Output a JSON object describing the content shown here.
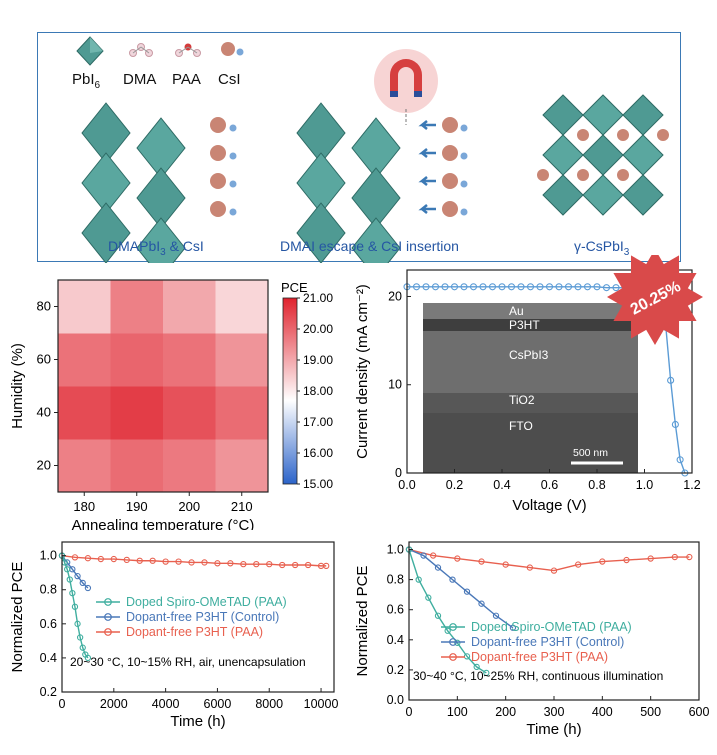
{
  "schematic": {
    "legend": [
      {
        "label": "PbI",
        "sub": "6"
      },
      {
        "label": "DMA",
        "sub": ""
      },
      {
        "label": "PAA",
        "sub": ""
      },
      {
        "label": "CsI",
        "sub": ""
      }
    ],
    "stages": [
      {
        "label": "DMAPbI",
        "sub": "3",
        "tail": " & CsI"
      },
      {
        "label": "DMAI escape & CsI insertion",
        "sub": "",
        "tail": ""
      },
      {
        "label": "γ-CsPbI",
        "sub": "3",
        "tail": ""
      }
    ],
    "colors": {
      "octahedron": "#4f9a93",
      "cs": "#c98574",
      "frame": "#3b79b5",
      "magnet": "#d63f3f"
    }
  },
  "chart_data": [
    {
      "type": "heatmap",
      "xlabel": "Annealing temperature (°C)",
      "ylabel": "Humidity (%)",
      "x_categories": [
        "180",
        "190",
        "200",
        "210"
      ],
      "y_categories": [
        "20",
        "40",
        "60",
        "80"
      ],
      "values": [
        [
          19.6,
          19.9,
          19.7,
          19.3
        ],
        [
          20.4,
          20.6,
          20.3,
          19.9
        ],
        [
          19.8,
          20.0,
          19.8,
          19.3
        ],
        [
          18.5,
          19.6,
          19.0,
          18.3
        ]
      ],
      "colorbar": {
        "title": "PCE",
        "min": 15.0,
        "max": 21.0,
        "ticks": [
          "21.00",
          "20.00",
          "19.00",
          "18.00",
          "17.00",
          "16.00",
          "15.00"
        ]
      }
    },
    {
      "type": "line",
      "xlabel": "Voltage (V)",
      "ylabel": "Current density (mA cm⁻²)",
      "xlim": [
        0.0,
        1.2
      ],
      "ylim": [
        0,
        23
      ],
      "x_ticks": [
        "0.0",
        "0.2",
        "0.4",
        "0.6",
        "0.8",
        "1.0",
        "1.2"
      ],
      "y_ticks": [
        "0",
        "10",
        "20"
      ],
      "series": [
        {
          "name": "",
          "color": "#5b9bd5",
          "x": [
            0.0,
            0.04,
            0.08,
            0.12,
            0.16,
            0.2,
            0.24,
            0.28,
            0.32,
            0.36,
            0.4,
            0.44,
            0.48,
            0.52,
            0.56,
            0.6,
            0.64,
            0.68,
            0.72,
            0.76,
            0.8,
            0.84,
            0.88,
            0.92,
            0.96,
            1.0,
            1.04,
            1.07,
            1.09,
            1.11,
            1.13,
            1.15,
            1.17
          ],
          "y": [
            21.1,
            21.1,
            21.1,
            21.1,
            21.1,
            21.1,
            21.1,
            21.1,
            21.1,
            21.1,
            21.1,
            21.1,
            21.1,
            21.1,
            21.1,
            21.1,
            21.1,
            21.1,
            21.1,
            21.1,
            21.1,
            21.0,
            21.0,
            21.0,
            20.9,
            20.7,
            20.2,
            19.0,
            16.5,
            10.5,
            5.5,
            1.5,
            0.0
          ]
        }
      ],
      "badge": "20.25%",
      "inset_labels": [
        "Au",
        "P3HT",
        "CsPbI3",
        "TiO2",
        "FTO"
      ],
      "scale_bar": "500 nm"
    },
    {
      "type": "line",
      "xlabel": "Time (h)",
      "ylabel": "Normalized PCE",
      "xlim": [
        0,
        10500
      ],
      "ylim": [
        0.2,
        1.08
      ],
      "x_ticks": [
        "0",
        "2000",
        "4000",
        "6000",
        "8000",
        "10000"
      ],
      "y_ticks": [
        "0.2",
        "0.4",
        "0.6",
        "0.8",
        "1.0"
      ],
      "condition": "20~30 °C, 10~15% RH, air, unencapsulation",
      "series": [
        {
          "name": "Doped Spiro-OMeTAD (PAA)",
          "color": "#3fae9f",
          "x": [
            0,
            100,
            200,
            300,
            400,
            500,
            600,
            700,
            800,
            900,
            1000
          ],
          "y": [
            1.0,
            0.96,
            0.92,
            0.86,
            0.78,
            0.7,
            0.6,
            0.52,
            0.46,
            0.42,
            0.4
          ]
        },
        {
          "name": "Dopant-free P3HT (Control)",
          "color": "#4a78b8",
          "x": [
            0,
            200,
            400,
            600,
            800,
            1000
          ],
          "y": [
            1.0,
            0.96,
            0.92,
            0.88,
            0.84,
            0.81
          ]
        },
        {
          "name": "Dopant-free P3HT (PAA)",
          "color": "#e8604f",
          "x": [
            0,
            500,
            1000,
            1500,
            2000,
            2500,
            3000,
            3500,
            4000,
            4500,
            5000,
            5500,
            6000,
            6500,
            7000,
            7500,
            8000,
            8500,
            9000,
            9500,
            10000,
            10200
          ],
          "y": [
            1.0,
            0.99,
            0.985,
            0.98,
            0.98,
            0.975,
            0.97,
            0.97,
            0.965,
            0.965,
            0.96,
            0.96,
            0.955,
            0.955,
            0.95,
            0.95,
            0.95,
            0.945,
            0.945,
            0.945,
            0.94,
            0.94
          ]
        }
      ]
    },
    {
      "type": "line",
      "xlabel": "Time (h)",
      "ylabel": "Normalized PCE",
      "xlim": [
        0,
        600
      ],
      "ylim": [
        0.0,
        1.05
      ],
      "x_ticks": [
        "0",
        "100",
        "200",
        "300",
        "400",
        "500",
        "600"
      ],
      "y_ticks": [
        "0.0",
        "0.2",
        "0.4",
        "0.6",
        "0.8",
        "1.0"
      ],
      "condition": "30~40 °C, 10~25% RH, continuous illumination",
      "series": [
        {
          "name": "Doped Spiro-OMeTAD (PAA)",
          "color": "#3fae9f",
          "x": [
            0,
            20,
            40,
            60,
            80,
            100,
            120,
            140,
            160
          ],
          "y": [
            1.0,
            0.8,
            0.68,
            0.56,
            0.46,
            0.38,
            0.29,
            0.22,
            0.18
          ]
        },
        {
          "name": "Dopant-free P3HT (Control)",
          "color": "#4a78b8",
          "x": [
            0,
            30,
            60,
            90,
            120,
            150,
            180,
            215
          ],
          "y": [
            1.0,
            0.96,
            0.88,
            0.8,
            0.72,
            0.64,
            0.56,
            0.48
          ]
        },
        {
          "name": "Dopant-free P3HT (PAA)",
          "color": "#e8604f",
          "x": [
            0,
            50,
            100,
            150,
            200,
            250,
            300,
            350,
            400,
            450,
            500,
            550,
            580
          ],
          "y": [
            1.0,
            0.96,
            0.94,
            0.92,
            0.9,
            0.88,
            0.86,
            0.9,
            0.92,
            0.93,
            0.94,
            0.95,
            0.95
          ]
        }
      ]
    }
  ]
}
